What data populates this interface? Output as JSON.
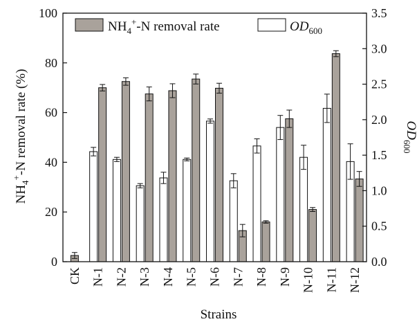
{
  "chart_data": {
    "type": "bar",
    "categories": [
      "CK",
      "N-1",
      "N-2",
      "N-3",
      "N-4",
      "N-5",
      "N-6",
      "N-7",
      "N-8",
      "N-9",
      "N-10",
      "N-11",
      "N-12"
    ],
    "xlabel": "Strains",
    "ylabel_left": {
      "main": "NH",
      "sub": "4",
      "sup": "+",
      "rest": "-N removal rate (%)"
    },
    "ylabel_right": {
      "main": "OD",
      "sub": "600"
    },
    "ylim_left": [
      0,
      100
    ],
    "ylim_right": [
      0,
      3.5
    ],
    "yticks_left": [
      "0",
      "20",
      "40",
      "60",
      "80",
      "100"
    ],
    "yticks_right": [
      "0.0",
      "0.5",
      "1.0",
      "1.5",
      "2.0",
      "2.5",
      "3.0",
      "3.5"
    ],
    "legend_position": "top-center",
    "series": [
      {
        "name": "NH4+-N removal rate",
        "label": {
          "main": "NH",
          "sub": "4",
          "sup": "+",
          "rest": "-N removal rate"
        },
        "axis": "left",
        "color": "#a9a29b",
        "values": [
          2.5,
          70,
          72.5,
          67.5,
          68.8,
          73.5,
          69.8,
          12.5,
          16,
          57.5,
          21,
          83.7,
          33.3
        ],
        "errors": [
          1.2,
          1.3,
          1.5,
          2.8,
          2.8,
          2.0,
          2.0,
          2.5,
          0.5,
          3.5,
          0.8,
          1.2,
          3.0
        ]
      },
      {
        "name": "OD600",
        "label": {
          "main": "OD",
          "sub": "600"
        },
        "axis": "right",
        "color": "#ffffff",
        "values": [
          null,
          1.55,
          1.44,
          1.07,
          1.18,
          1.44,
          1.98,
          1.14,
          1.63,
          1.89,
          1.47,
          2.16,
          1.41
        ],
        "errors": [
          null,
          0.06,
          0.03,
          0.03,
          0.08,
          0.02,
          0.03,
          0.1,
          0.1,
          0.17,
          0.17,
          0.2,
          0.25
        ]
      }
    ]
  }
}
